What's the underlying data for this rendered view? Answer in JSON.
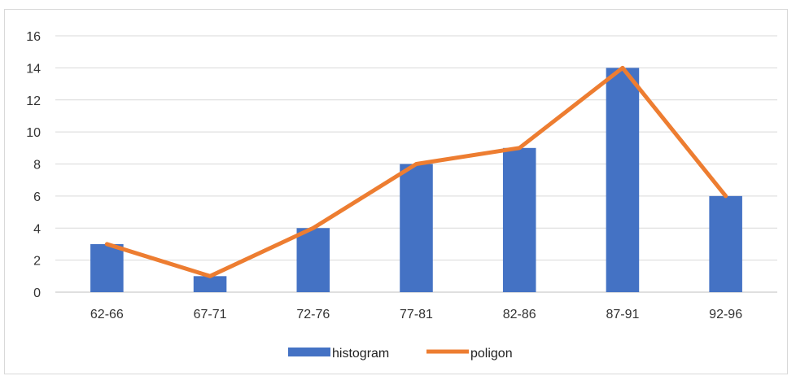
{
  "chart_data": {
    "type": "bar",
    "categories": [
      "62-66",
      "67-71",
      "72-76",
      "77-81",
      "82-86",
      "87-91",
      "92-96"
    ],
    "series": [
      {
        "name": "histogram",
        "kind": "bar",
        "color": "#4472c4",
        "values": [
          3,
          1,
          4,
          8,
          9,
          14,
          6
        ]
      },
      {
        "name": "poligon",
        "kind": "line",
        "color": "#ed7d31",
        "values": [
          3,
          1,
          4,
          8,
          9,
          14,
          6
        ]
      }
    ],
    "ylim": [
      0,
      16
    ],
    "yticks": [
      0,
      2,
      4,
      6,
      8,
      10,
      12,
      14,
      16
    ],
    "grid": true,
    "legend": "bottom"
  }
}
